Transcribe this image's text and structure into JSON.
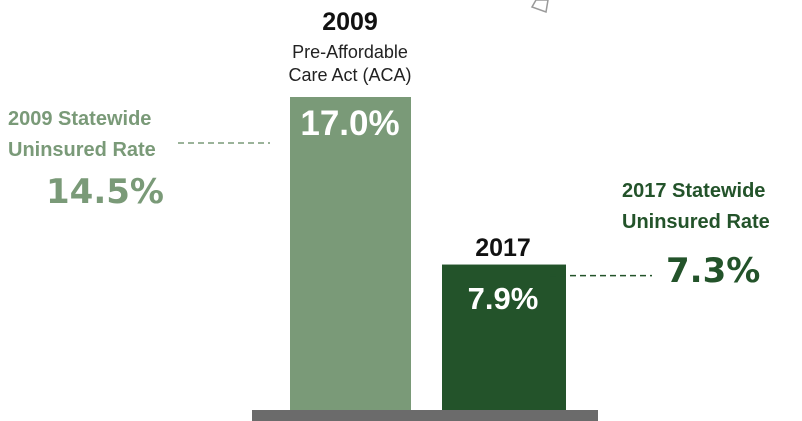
{
  "chart_data": {
    "type": "bar",
    "categories": [
      "2009",
      "2017"
    ],
    "category_subtitles": [
      [
        "Pre-Affordable",
        "Care Act (ACA)"
      ],
      []
    ],
    "values": [
      17.0,
      7.9
    ],
    "value_labels": [
      "17.0%",
      "7.9%"
    ],
    "ylim": [
      0,
      17.0
    ],
    "grid": false,
    "colors": {
      "bar_2009": "#7a9a78",
      "bar_2017": "#23532a",
      "annotation_2009": "#7a9a78",
      "annotation_2017": "#23532a",
      "baseline": "#6b6b6b",
      "corner_shape": "#9a9a9a"
    },
    "annotations": [
      {
        "lines": [
          "2009 Statewide",
          "Uninsured Rate"
        ],
        "value": 14.5,
        "value_label": "14.5%",
        "side": "left",
        "category": "2009"
      },
      {
        "lines": [
          "2017 Statewide",
          "Uninsured Rate"
        ],
        "value": 7.3,
        "value_label": "7.3%",
        "side": "right",
        "category": "2017"
      }
    ]
  }
}
